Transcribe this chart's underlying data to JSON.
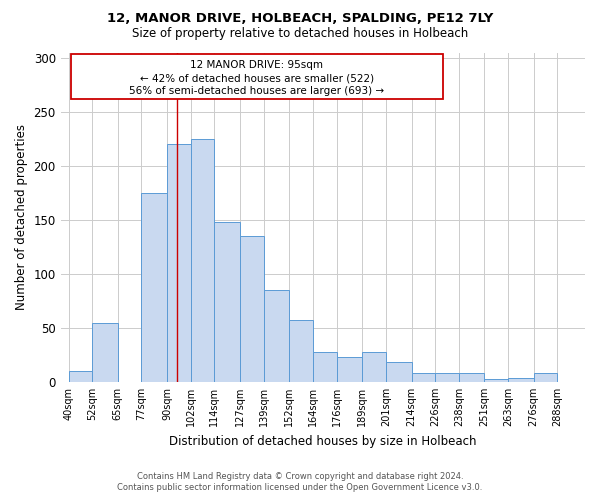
{
  "title1": "12, MANOR DRIVE, HOLBEACH, SPALDING, PE12 7LY",
  "title2": "Size of property relative to detached houses in Holbeach",
  "xlabel": "Distribution of detached houses by size in Holbeach",
  "ylabel": "Number of detached properties",
  "footnote1": "Contains HM Land Registry data © Crown copyright and database right 2024.",
  "footnote2": "Contains public sector information licensed under the Open Government Licence v3.0.",
  "annotation_line1": "12 MANOR DRIVE: 95sqm",
  "annotation_line2": "← 42% of detached houses are smaller (522)",
  "annotation_line3": "56% of semi-detached houses are larger (693) →",
  "bar_left_edges": [
    40,
    52,
    65,
    77,
    90,
    102,
    114,
    127,
    139,
    152,
    164,
    176,
    189,
    201,
    214,
    226,
    238,
    251,
    263,
    276
  ],
  "bar_heights": [
    10,
    55,
    0,
    175,
    220,
    225,
    148,
    135,
    85,
    57,
    28,
    23,
    28,
    18,
    8,
    8,
    8,
    3,
    4,
    8
  ],
  "bar_widths": [
    12,
    13,
    12,
    13,
    12,
    12,
    13,
    12,
    13,
    12,
    12,
    13,
    12,
    13,
    12,
    12,
    13,
    12,
    13,
    12
  ],
  "bar_color": "#c9d9f0",
  "bar_edge_color": "#5b9bd5",
  "red_line_x": 95,
  "ylim": [
    0,
    305
  ],
  "yticks": [
    0,
    50,
    100,
    150,
    200,
    250,
    300
  ],
  "xtick_labels": [
    "40sqm",
    "52sqm",
    "65sqm",
    "77sqm",
    "90sqm",
    "102sqm",
    "114sqm",
    "127sqm",
    "139sqm",
    "152sqm",
    "164sqm",
    "176sqm",
    "189sqm",
    "201sqm",
    "214sqm",
    "226sqm",
    "238sqm",
    "251sqm",
    "263sqm",
    "276sqm",
    "288sqm"
  ],
  "xtick_positions": [
    40,
    52,
    65,
    77,
    90,
    102,
    114,
    127,
    139,
    152,
    164,
    176,
    189,
    201,
    214,
    226,
    238,
    251,
    263,
    276,
    288
  ],
  "grid_color": "#cccccc",
  "background_color": "#ffffff",
  "red_line_color": "#cc0000",
  "box_edge_color": "#cc0000"
}
